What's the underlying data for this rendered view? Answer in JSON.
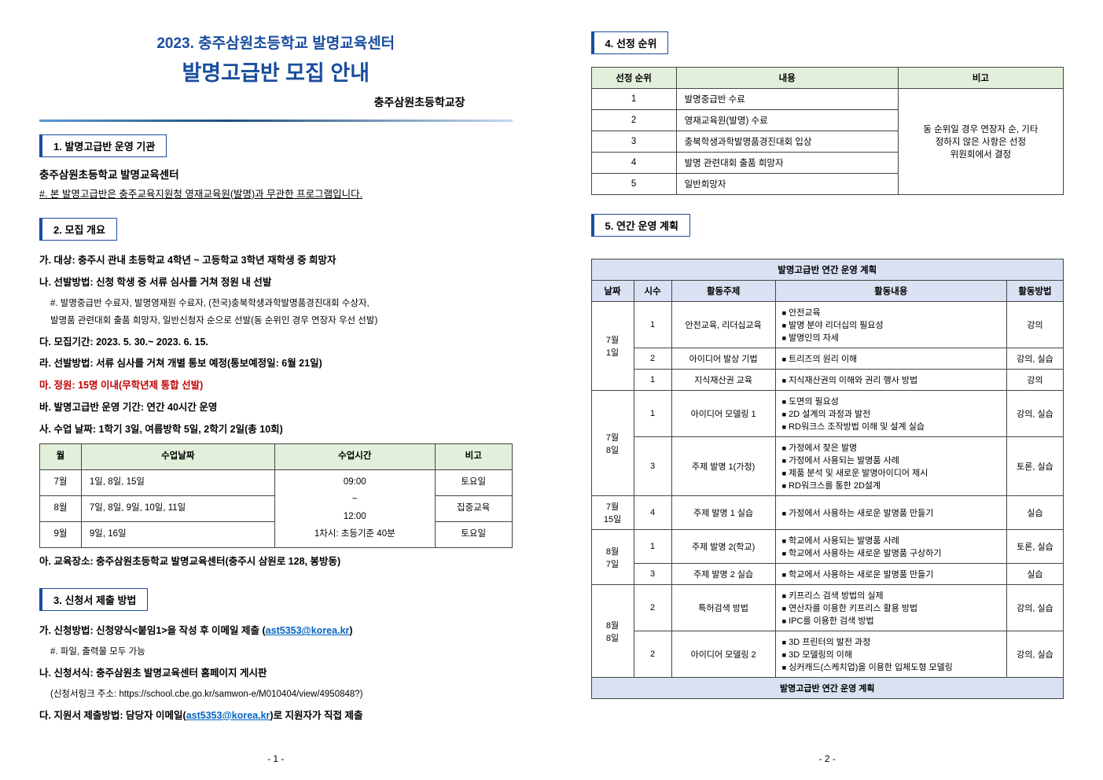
{
  "page1": {
    "title_line1": "2023. 충주삼원초등학교 발명교육센터",
    "title_line2": "발명고급반 모집 안내",
    "subtitle": "충주삼원초등학교장",
    "sec1": {
      "head": "1. 발명고급반 운영 기관",
      "org": "충주삼원초등학교 발명교육센터",
      "note": "#. 본 발명고급반은 충주교육지원청 영재교육원(발명)과 무관한 프로그램입니다."
    },
    "sec2": {
      "head": "2. 모집 개요",
      "a": "가. 대상: 충주시 관내 초등학교 4학년 ~ 고등학교 3학년 재학생 중 희망자",
      "b": "나. 선발방법: 신청 학생 중 서류 심사를 거쳐 정원 내 선발",
      "b_sub1": "#. 발명중급반 수료자, 발명영재원 수료자, (전국)충북학생과학발명품경진대회 수상자,",
      "b_sub2": "발명품 관련대회 출품 희망자, 일반신청자 순으로 선발(동 순위인 경우 연장자 우선 선발)",
      "c": "다. 모집기간: 2023. 5. 30.~ 2023. 6. 15.",
      "d": "라. 선발방법: 서류 심사를 거쳐 개별 통보 예정(통보예정일: 6월 21일)",
      "e": "마. 정원: 15명 이내(무학년제 통합 선발)",
      "f": "바. 발명고급반 운영 기간: 연간 40시간 운영",
      "g": "사. 수업 날짜: 1학기 3일, 여름방학 5일, 2학기 2일(총 10회)",
      "sched_head": [
        "월",
        "수업날짜",
        "수업시간",
        "비고"
      ],
      "sched": [
        {
          "m": "7월",
          "d": "1일, 8일, 15일",
          "t": "09:00",
          "n": "토요일"
        },
        {
          "m": "8월",
          "d": "7일, 8일, 9일, 10일, 11일",
          "t": "~",
          "n": "집중교육"
        },
        {
          "m": "9월",
          "d": "9일, 16일",
          "t": "12:00",
          "n": "토요일"
        }
      ],
      "sched_note": "1차시: 초등기준 40분",
      "h": "아. 교육장소: 충주삼원초등학교 발명교육센터(충주시 삼원로 128, 봉방동)"
    },
    "sec3": {
      "head": "3. 신청서 제출 방법",
      "a": "가. 신청방법: 신청양식<붙임1>을 작성 후 이메일 제출 (",
      "a_mail": "ast5353@korea.kr",
      "a_end": ")",
      "a_sub": "#. 파일, 출력물 모두 가능",
      "b": "나. 신청서식: 충주삼원초 발명교육센터 홈페이지 게시판",
      "b_sub": "(신청서링크 주소: https://school.cbe.go.kr/samwon-e/M010404/view/4950848?)",
      "c": "다. 지원서 제출방법: 담당자 이메일(",
      "c_mail": "ast5353@korea.kr",
      "c_end": ")로 지원자가 직접 제출"
    },
    "page_num": "- 1 -"
  },
  "page2": {
    "sec4": {
      "head": "4. 선정 순위",
      "cols": [
        "선정 순위",
        "내용",
        "비고"
      ],
      "rows": [
        [
          "1",
          "발명중급반 수료"
        ],
        [
          "2",
          "영재교육원(발명) 수료"
        ],
        [
          "3",
          "충북학생과학발명품경진대회 입상"
        ],
        [
          "4",
          "발명 관련대회 출품 희망자"
        ],
        [
          "5",
          "일반희망자"
        ]
      ],
      "note_lines": [
        "동 순위일 경우 연장자 순, 기타",
        "정하지 않은 사항은 선정",
        "위원회에서 결정"
      ]
    },
    "sec5": {
      "head": "5. 연간 운영 계획",
      "plan_title": "발명고급반 연간 운영 계획",
      "cols": [
        "날짜",
        "시수",
        "활동주제",
        "활동내용",
        "활동방법"
      ],
      "rows": [
        {
          "date": "7월\n1일",
          "hrs": "1",
          "topic": "안전교육, 리더십교육",
          "items": [
            "안전교육",
            "발명 분야 리더십의 필요성",
            "발명인의 자세"
          ],
          "method": "강의"
        },
        {
          "date": "",
          "hrs": "2",
          "topic": "아이디어 발상 기법",
          "items": [
            "트리즈의 원리 이해"
          ],
          "method": "강의, 실습"
        },
        {
          "date": "",
          "hrs": "1",
          "topic": "지식재산권 교육",
          "items": [
            "지식재산권의 이해와 권리 행사 방법"
          ],
          "method": "강의"
        },
        {
          "date": "7월\n8일",
          "hrs": "1",
          "topic": "아이디어 모델링 1",
          "items": [
            "도면의 필요성",
            "2D 설계의 과정과 발전",
            "RD워크스 조작방법 이해 및 설계 실습"
          ],
          "method": "강의, 실습"
        },
        {
          "date": "",
          "hrs": "3",
          "topic": "주제 발명 1(가정)",
          "items": [
            "가정에서 찾은 발명",
            "가정에서 사용되는 발명품 사례",
            "제품 분석 및 새로운 발명아이디어 제시",
            "RD워크스를 통한 2D설계"
          ],
          "method": "토론, 실습"
        },
        {
          "date": "7월\n15일",
          "hrs": "4",
          "topic": "주제 발명 1 실습",
          "items": [
            "가정에서 사용하는 새로운 발명품 만들기"
          ],
          "method": "실습"
        },
        {
          "date": "8월\n7일",
          "hrs": "1",
          "topic": "주제 발명 2(학교)",
          "items": [
            "학교에서 사용되는 발명품 사례",
            "학교에서 사용하는 새로운 발명품 구상하기"
          ],
          "method": "토론, 실습"
        },
        {
          "date": "",
          "hrs": "3",
          "topic": "주제 발명 2 실습",
          "items": [
            "학교에서 사용하는 새로운 발명품 만들기"
          ],
          "method": "실습"
        },
        {
          "date": "8월\n8일",
          "hrs": "2",
          "topic": "특허검색 방법",
          "items": [
            "키프리스 검색 방법의 실제",
            "연산자를 이용한 키프리스 활용 방법",
            "IPC를 이용한 검색 방법"
          ],
          "method": "강의, 실습"
        },
        {
          "date": "",
          "hrs": "2",
          "topic": "아이디어 모델링 2",
          "items": [
            "3D 프린터의 발전 과정",
            "3D 모델링의 이해",
            "싱커캐드(스케치업)을 이용한 입체도형 모델링"
          ],
          "method": "강의, 실습"
        }
      ],
      "plan_footer": "발명고급반 연간 운영 계획"
    },
    "page_num": "- 2 -"
  }
}
